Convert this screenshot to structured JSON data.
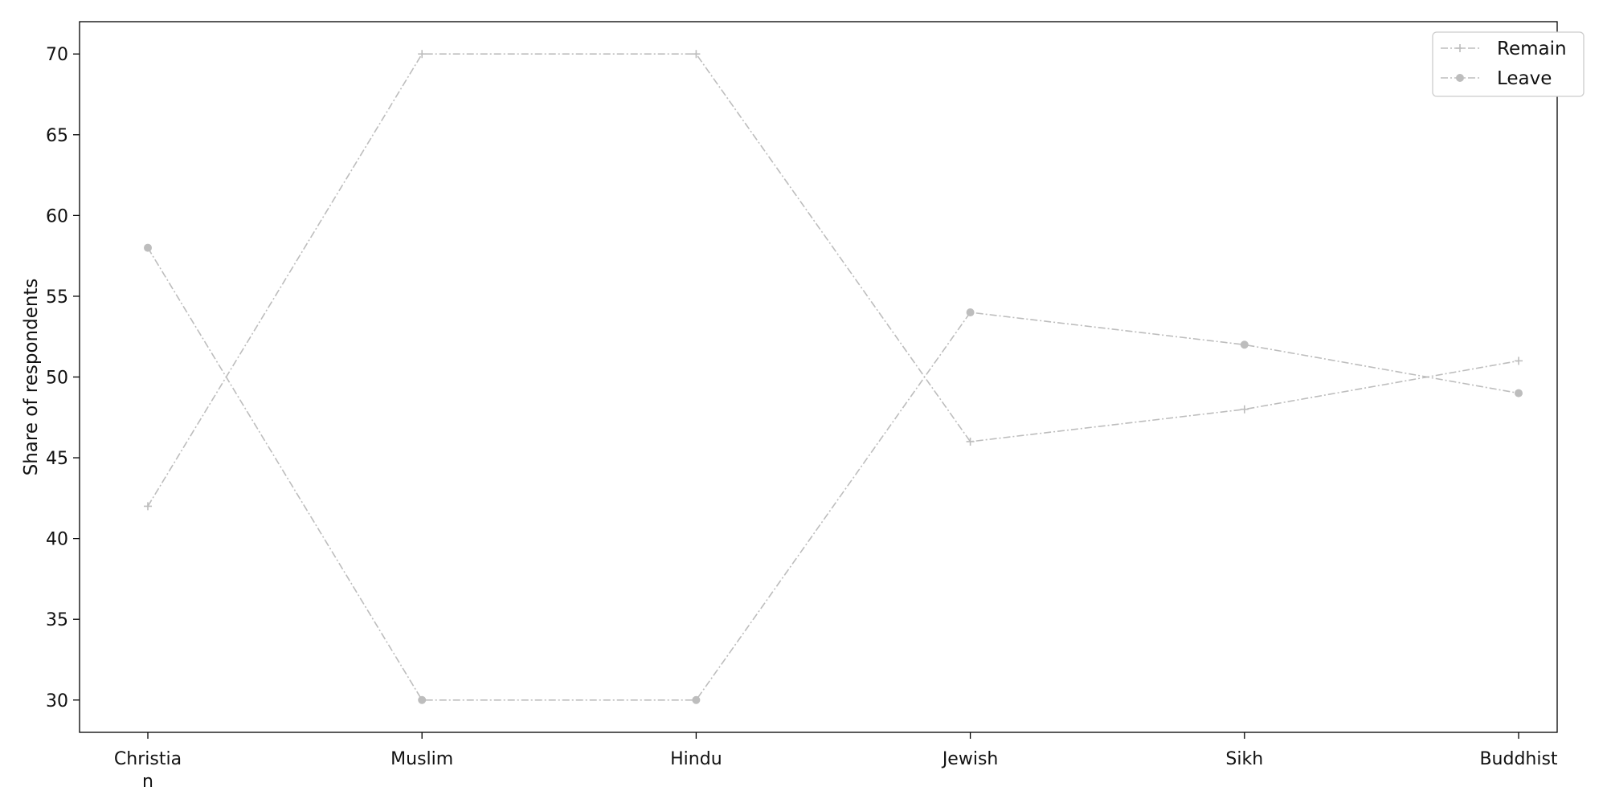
{
  "chart_data": {
    "type": "line",
    "categories": [
      "Christia\nn",
      "Muslim",
      "Hindu",
      "Jewish",
      "Sikh",
      "Buddhist"
    ],
    "series": [
      {
        "name": "Remain",
        "marker": "plus",
        "color": "#bdbdbd",
        "values": [
          42,
          70,
          70,
          46,
          48,
          51
        ]
      },
      {
        "name": "Leave",
        "marker": "circle",
        "color": "#bdbdbd",
        "values": [
          58,
          30,
          30,
          54,
          52,
          49
        ]
      }
    ],
    "title": "",
    "xlabel": "",
    "ylabel": "Share of respondents",
    "ylim": [
      28,
      72
    ],
    "yticks": [
      30,
      35,
      40,
      45,
      50,
      55,
      60,
      65,
      70
    ],
    "grid": false,
    "legend_position": "top-right"
  }
}
